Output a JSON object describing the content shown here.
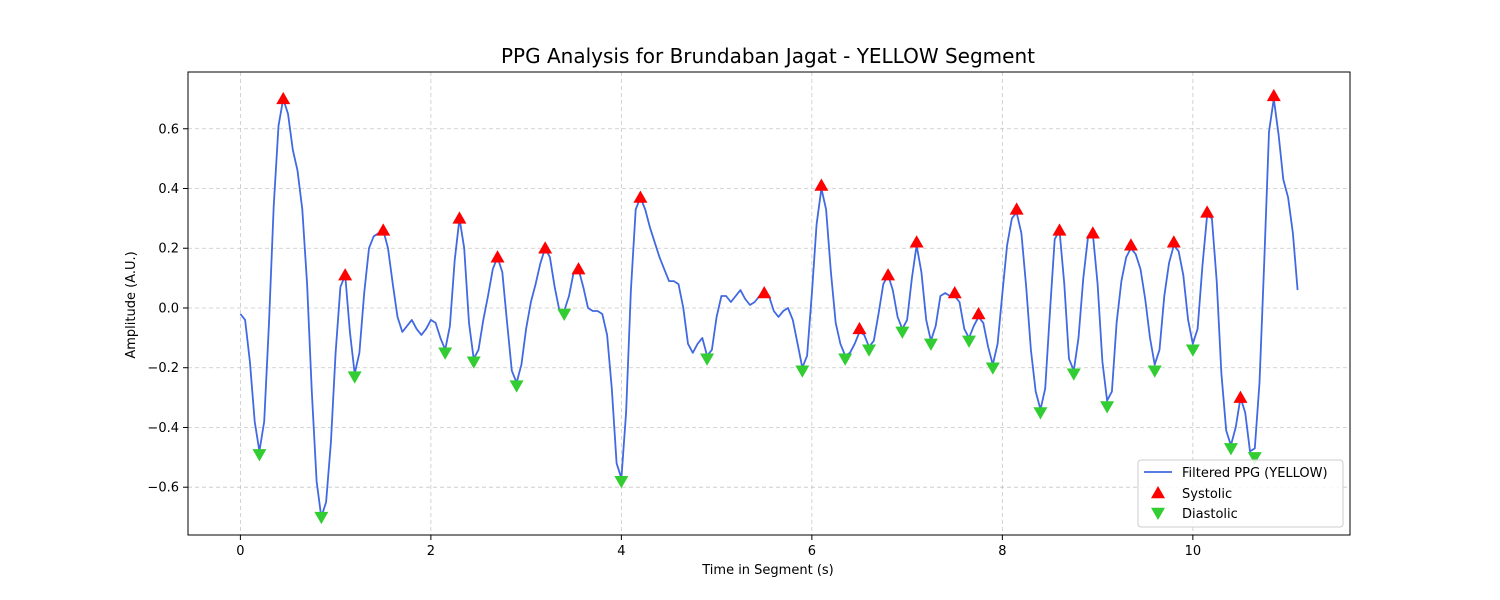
{
  "chart_data": {
    "type": "line",
    "title": "PPG Analysis for Brundaban Jagat - YELLOW Segment",
    "xlabel": "Time in Segment (s)",
    "ylabel": "Amplitude (A.U.)",
    "xlim": [
      -0.55,
      11.65
    ],
    "ylim": [
      -0.76,
      0.79
    ],
    "x_ticks": [
      0,
      2,
      4,
      6,
      8,
      10
    ],
    "x_tick_labels": [
      "0",
      "2",
      "4",
      "6",
      "8",
      "10"
    ],
    "y_ticks": [
      -0.6,
      -0.4,
      -0.2,
      0.0,
      0.2,
      0.4,
      0.6
    ],
    "y_tick_labels": [
      "−0.6",
      "−0.4",
      "−0.2",
      "0.0",
      "0.2",
      "0.4",
      "0.6"
    ],
    "grid": true,
    "legend_position": "bottom-right",
    "colors": {
      "line": "#4169e1",
      "systolic": "#ff0000",
      "diastolic": "#32cd32"
    },
    "series": [
      {
        "name": "Filtered PPG (YELLOW)",
        "kind": "line",
        "points": [
          [
            0.0,
            -0.02
          ],
          [
            0.05,
            -0.04
          ],
          [
            0.1,
            -0.18
          ],
          [
            0.15,
            -0.38
          ],
          [
            0.2,
            -0.48
          ],
          [
            0.25,
            -0.38
          ],
          [
            0.3,
            -0.05
          ],
          [
            0.35,
            0.34
          ],
          [
            0.4,
            0.61
          ],
          [
            0.45,
            0.7
          ],
          [
            0.5,
            0.65
          ],
          [
            0.55,
            0.53
          ],
          [
            0.6,
            0.46
          ],
          [
            0.65,
            0.33
          ],
          [
            0.7,
            0.08
          ],
          [
            0.75,
            -0.28
          ],
          [
            0.8,
            -0.58
          ],
          [
            0.85,
            -0.7
          ],
          [
            0.9,
            -0.65
          ],
          [
            0.95,
            -0.45
          ],
          [
            1.0,
            -0.15
          ],
          [
            1.05,
            0.07
          ],
          [
            1.1,
            0.11
          ],
          [
            1.15,
            -0.08
          ],
          [
            1.2,
            -0.22
          ],
          [
            1.25,
            -0.15
          ],
          [
            1.3,
            0.05
          ],
          [
            1.35,
            0.2
          ],
          [
            1.4,
            0.24
          ],
          [
            1.45,
            0.25
          ],
          [
            1.5,
            0.26
          ],
          [
            1.55,
            0.2
          ],
          [
            1.6,
            0.08
          ],
          [
            1.65,
            -0.03
          ],
          [
            1.7,
            -0.08
          ],
          [
            1.75,
            -0.06
          ],
          [
            1.8,
            -0.04
          ],
          [
            1.85,
            -0.07
          ],
          [
            1.9,
            -0.09
          ],
          [
            1.95,
            -0.07
          ],
          [
            2.0,
            -0.04
          ],
          [
            2.05,
            -0.05
          ],
          [
            2.1,
            -0.1
          ],
          [
            2.15,
            -0.14
          ],
          [
            2.2,
            -0.06
          ],
          [
            2.25,
            0.16
          ],
          [
            2.3,
            0.3
          ],
          [
            2.35,
            0.2
          ],
          [
            2.4,
            -0.05
          ],
          [
            2.45,
            -0.17
          ],
          [
            2.5,
            -0.14
          ],
          [
            2.55,
            -0.04
          ],
          [
            2.6,
            0.04
          ],
          [
            2.65,
            0.13
          ],
          [
            2.7,
            0.17
          ],
          [
            2.75,
            0.12
          ],
          [
            2.8,
            -0.05
          ],
          [
            2.85,
            -0.21
          ],
          [
            2.9,
            -0.25
          ],
          [
            2.95,
            -0.19
          ],
          [
            3.0,
            -0.07
          ],
          [
            3.05,
            0.02
          ],
          [
            3.1,
            0.08
          ],
          [
            3.15,
            0.15
          ],
          [
            3.2,
            0.2
          ],
          [
            3.25,
            0.17
          ],
          [
            3.3,
            0.07
          ],
          [
            3.35,
            -0.01
          ],
          [
            3.4,
            -0.01
          ],
          [
            3.45,
            0.04
          ],
          [
            3.5,
            0.12
          ],
          [
            3.55,
            0.13
          ],
          [
            3.6,
            0.07
          ],
          [
            3.65,
            0.0
          ],
          [
            3.7,
            -0.01
          ],
          [
            3.75,
            -0.01
          ],
          [
            3.8,
            -0.02
          ],
          [
            3.85,
            -0.09
          ],
          [
            3.9,
            -0.27
          ],
          [
            3.95,
            -0.52
          ],
          [
            4.0,
            -0.57
          ],
          [
            4.05,
            -0.35
          ],
          [
            4.1,
            0.06
          ],
          [
            4.15,
            0.33
          ],
          [
            4.2,
            0.37
          ],
          [
            4.25,
            0.33
          ],
          [
            4.3,
            0.27
          ],
          [
            4.35,
            0.22
          ],
          [
            4.4,
            0.17
          ],
          [
            4.45,
            0.13
          ],
          [
            4.5,
            0.09
          ],
          [
            4.55,
            0.09
          ],
          [
            4.6,
            0.08
          ],
          [
            4.65,
            0.0
          ],
          [
            4.7,
            -0.12
          ],
          [
            4.75,
            -0.15
          ],
          [
            4.8,
            -0.12
          ],
          [
            4.85,
            -0.1
          ],
          [
            4.9,
            -0.16
          ],
          [
            4.95,
            -0.14
          ],
          [
            5.0,
            -0.03
          ],
          [
            5.05,
            0.04
          ],
          [
            5.1,
            0.04
          ],
          [
            5.15,
            0.02
          ],
          [
            5.2,
            0.04
          ],
          [
            5.25,
            0.06
          ],
          [
            5.3,
            0.03
          ],
          [
            5.35,
            0.01
          ],
          [
            5.4,
            0.02
          ],
          [
            5.45,
            0.04
          ],
          [
            5.5,
            0.05
          ],
          [
            5.55,
            0.04
          ],
          [
            5.6,
            -0.01
          ],
          [
            5.65,
            -0.03
          ],
          [
            5.7,
            -0.01
          ],
          [
            5.75,
            0.0
          ],
          [
            5.8,
            -0.04
          ],
          [
            5.85,
            -0.12
          ],
          [
            5.9,
            -0.2
          ],
          [
            5.95,
            -0.16
          ],
          [
            6.0,
            0.05
          ],
          [
            6.05,
            0.28
          ],
          [
            6.1,
            0.4
          ],
          [
            6.15,
            0.33
          ],
          [
            6.2,
            0.12
          ],
          [
            6.25,
            -0.05
          ],
          [
            6.3,
            -0.12
          ],
          [
            6.35,
            -0.16
          ],
          [
            6.4,
            -0.15
          ],
          [
            6.45,
            -0.12
          ],
          [
            6.5,
            -0.08
          ],
          [
            6.55,
            -0.09
          ],
          [
            6.6,
            -0.13
          ],
          [
            6.65,
            -0.11
          ],
          [
            6.7,
            -0.02
          ],
          [
            6.75,
            0.08
          ],
          [
            6.8,
            0.11
          ],
          [
            6.85,
            0.06
          ],
          [
            6.9,
            -0.03
          ],
          [
            6.95,
            -0.07
          ],
          [
            7.0,
            -0.04
          ],
          [
            7.05,
            0.1
          ],
          [
            7.1,
            0.21
          ],
          [
            7.15,
            0.12
          ],
          [
            7.2,
            -0.04
          ],
          [
            7.25,
            -0.11
          ],
          [
            7.3,
            -0.06
          ],
          [
            7.35,
            0.04
          ],
          [
            7.4,
            0.05
          ],
          [
            7.45,
            0.04
          ],
          [
            7.5,
            0.04
          ],
          [
            7.55,
            0.02
          ],
          [
            7.6,
            -0.07
          ],
          [
            7.65,
            -0.1
          ],
          [
            7.7,
            -0.06
          ],
          [
            7.75,
            -0.03
          ],
          [
            7.8,
            -0.05
          ],
          [
            7.85,
            -0.13
          ],
          [
            7.9,
            -0.19
          ],
          [
            7.95,
            -0.12
          ],
          [
            8.0,
            0.05
          ],
          [
            8.05,
            0.21
          ],
          [
            8.1,
            0.3
          ],
          [
            8.15,
            0.32
          ],
          [
            8.2,
            0.25
          ],
          [
            8.25,
            0.07
          ],
          [
            8.3,
            -0.14
          ],
          [
            8.35,
            -0.28
          ],
          [
            8.4,
            -0.34
          ],
          [
            8.45,
            -0.27
          ],
          [
            8.5,
            -0.01
          ],
          [
            8.55,
            0.23
          ],
          [
            8.6,
            0.26
          ],
          [
            8.65,
            0.08
          ],
          [
            8.7,
            -0.17
          ],
          [
            8.75,
            -0.21
          ],
          [
            8.8,
            -0.1
          ],
          [
            8.85,
            0.1
          ],
          [
            8.9,
            0.24
          ],
          [
            8.95,
            0.25
          ],
          [
            9.0,
            0.08
          ],
          [
            9.05,
            -0.18
          ],
          [
            9.1,
            -0.31
          ],
          [
            9.15,
            -0.28
          ],
          [
            9.2,
            -0.05
          ],
          [
            9.25,
            0.09
          ],
          [
            9.3,
            0.17
          ],
          [
            9.35,
            0.2
          ],
          [
            9.4,
            0.18
          ],
          [
            9.45,
            0.13
          ],
          [
            9.5,
            0.03
          ],
          [
            9.55,
            -0.1
          ],
          [
            9.6,
            -0.19
          ],
          [
            9.65,
            -0.14
          ],
          [
            9.7,
            0.04
          ],
          [
            9.75,
            0.15
          ],
          [
            9.8,
            0.21
          ],
          [
            9.85,
            0.19
          ],
          [
            9.9,
            0.11
          ],
          [
            9.95,
            -0.04
          ],
          [
            10.0,
            -0.12
          ],
          [
            10.05,
            -0.07
          ],
          [
            10.1,
            0.14
          ],
          [
            10.15,
            0.31
          ],
          [
            10.2,
            0.3
          ],
          [
            10.25,
            0.09
          ],
          [
            10.3,
            -0.22
          ],
          [
            10.35,
            -0.41
          ],
          [
            10.4,
            -0.46
          ],
          [
            10.45,
            -0.4
          ],
          [
            10.5,
            -0.3
          ],
          [
            10.55,
            -0.35
          ],
          [
            10.6,
            -0.48
          ],
          [
            10.65,
            -0.47
          ],
          [
            10.7,
            -0.25
          ],
          [
            10.75,
            0.16
          ],
          [
            10.8,
            0.59
          ],
          [
            10.85,
            0.7
          ],
          [
            10.9,
            0.58
          ],
          [
            10.95,
            0.43
          ],
          [
            11.0,
            0.37
          ],
          [
            11.05,
            0.25
          ],
          [
            11.1,
            0.06
          ]
        ]
      },
      {
        "name": "Systolic",
        "kind": "marker-up",
        "points": [
          [
            0.45,
            0.7
          ],
          [
            1.1,
            0.11
          ],
          [
            1.5,
            0.26
          ],
          [
            2.3,
            0.3
          ],
          [
            2.7,
            0.17
          ],
          [
            3.2,
            0.2
          ],
          [
            3.55,
            0.13
          ],
          [
            4.2,
            0.37
          ],
          [
            5.5,
            0.05
          ],
          [
            6.1,
            0.41
          ],
          [
            6.5,
            -0.07
          ],
          [
            6.8,
            0.11
          ],
          [
            7.1,
            0.22
          ],
          [
            7.5,
            0.05
          ],
          [
            7.75,
            -0.02
          ],
          [
            8.15,
            0.33
          ],
          [
            8.6,
            0.26
          ],
          [
            8.95,
            0.25
          ],
          [
            9.35,
            0.21
          ],
          [
            9.8,
            0.22
          ],
          [
            10.15,
            0.32
          ],
          [
            10.5,
            -0.3
          ],
          [
            10.85,
            0.71
          ]
        ]
      },
      {
        "name": "Diastolic",
        "kind": "marker-down",
        "points": [
          [
            0.2,
            -0.49
          ],
          [
            0.85,
            -0.7
          ],
          [
            1.2,
            -0.23
          ],
          [
            2.15,
            -0.15
          ],
          [
            2.45,
            -0.18
          ],
          [
            2.9,
            -0.26
          ],
          [
            3.4,
            -0.02
          ],
          [
            4.0,
            -0.58
          ],
          [
            4.9,
            -0.17
          ],
          [
            5.9,
            -0.21
          ],
          [
            6.35,
            -0.17
          ],
          [
            6.6,
            -0.14
          ],
          [
            6.95,
            -0.08
          ],
          [
            7.25,
            -0.12
          ],
          [
            7.65,
            -0.11
          ],
          [
            7.9,
            -0.2
          ],
          [
            8.4,
            -0.35
          ],
          [
            8.75,
            -0.22
          ],
          [
            9.1,
            -0.33
          ],
          [
            9.6,
            -0.21
          ],
          [
            10.0,
            -0.14
          ],
          [
            10.4,
            -0.47
          ],
          [
            10.65,
            -0.5
          ]
        ]
      }
    ]
  }
}
